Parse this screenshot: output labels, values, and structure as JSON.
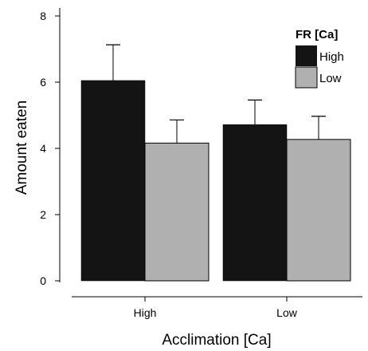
{
  "chart_data": {
    "type": "bar",
    "categories": [
      "High",
      "Low"
    ],
    "series": [
      {
        "name": "High",
        "values": [
          6.05,
          4.72
        ],
        "errors": [
          1.08,
          0.74
        ],
        "color": "#141414"
      },
      {
        "name": "Low",
        "values": [
          4.16,
          4.27
        ],
        "errors": [
          0.7,
          0.7
        ],
        "color": "#b0b0b0"
      }
    ],
    "xlabel": "Acclimation [Ca]",
    "ylabel": "Amount eaten",
    "ylim": [
      0,
      8
    ],
    "yticks": [
      "0",
      "2",
      "4",
      "6",
      "8"
    ],
    "legend_title": "FR [Ca]",
    "legend_position": "top-right",
    "grid": false
  }
}
